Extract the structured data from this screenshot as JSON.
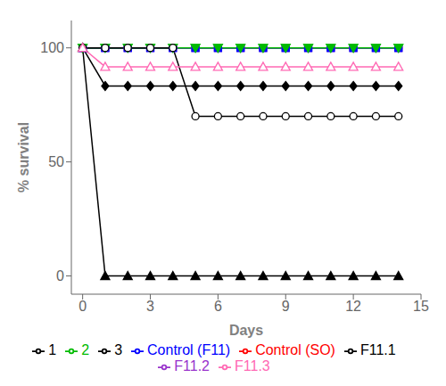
{
  "chart_data": {
    "type": "line",
    "x_label": "Days",
    "y_label": "% survival",
    "x": [
      0,
      1,
      2,
      3,
      4,
      5,
      6,
      7,
      8,
      9,
      10,
      11,
      12,
      13,
      14
    ],
    "xlim": [
      -0.5,
      15
    ],
    "ylim": [
      -8,
      112
    ],
    "xticks": [
      0,
      3,
      6,
      9,
      12,
      15
    ],
    "yticks": [
      0,
      50,
      100
    ],
    "grid": false,
    "legend": "bottom",
    "series": [
      {
        "name": "Control (SO)",
        "color": "#FF0000",
        "marker": "circle",
        "line_style": "solid",
        "values": [
          100,
          100,
          100,
          100,
          100,
          100,
          100,
          100,
          100,
          100,
          100,
          100,
          100,
          100,
          100
        ]
      },
      {
        "name": "1",
        "color": "#000000",
        "marker": "triangle",
        "line_style": "solid",
        "values": [
          100,
          0,
          0,
          0,
          0,
          0,
          0,
          0,
          0,
          0,
          0,
          0,
          0,
          0,
          0
        ]
      },
      {
        "name": "3",
        "color": "#000000",
        "marker": "diamond",
        "line_style": "solid",
        "values": [
          100,
          83.3,
          83.3,
          83.3,
          83.3,
          83.3,
          83.3,
          83.3,
          83.3,
          83.3,
          83.3,
          83.3,
          83.3,
          83.3,
          83.3
        ]
      },
      {
        "name": "F11.2",
        "color": "#9933CC",
        "marker": "square-open",
        "line_style": "solid",
        "values": [
          100,
          100,
          100,
          100,
          100,
          100,
          100,
          100,
          100,
          100,
          100,
          100,
          100,
          100,
          100
        ]
      },
      {
        "name": "Control (F11)",
        "color": "#0000FF",
        "marker": "square",
        "line_style": "solid",
        "values": [
          100,
          100,
          100,
          100,
          100,
          100,
          100,
          100,
          100,
          100,
          100,
          100,
          100,
          100,
          100
        ]
      },
      {
        "name": "2",
        "color": "#00BB00",
        "marker": "triangle-down",
        "line_style": "solid",
        "values": [
          100,
          100,
          100,
          100,
          100,
          100,
          100,
          100,
          100,
          100,
          100,
          100,
          100,
          100,
          100
        ]
      },
      {
        "name": "F11.1",
        "color": "#000000",
        "marker": "circle-open",
        "line_style": "solid",
        "values": [
          100,
          100,
          100,
          100,
          100,
          70.0,
          70.0,
          70.0,
          70.0,
          70.0,
          70.0,
          70.0,
          70.0,
          70.0,
          70.0
        ]
      },
      {
        "name": "F11.3",
        "color": "#FF69B4",
        "marker": "triangle-open",
        "line_style": "solid",
        "values": [
          100,
          91.7,
          91.7,
          91.7,
          91.7,
          91.7,
          91.7,
          91.7,
          91.7,
          91.7,
          91.7,
          91.7,
          91.7,
          91.7,
          91.7
        ]
      }
    ]
  }
}
